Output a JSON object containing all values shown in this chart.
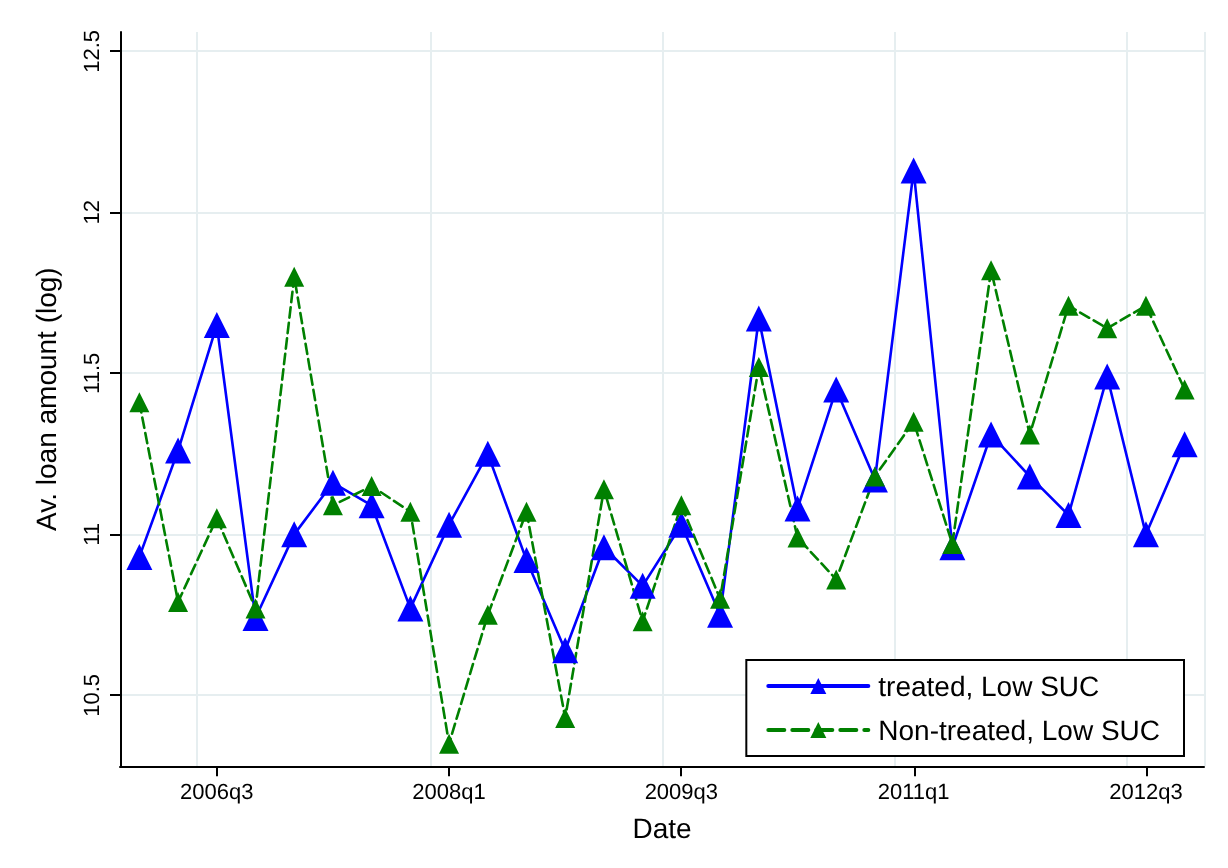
{
  "chart_data": {
    "type": "line",
    "xlabel": "Date",
    "ylabel": "Av. loan amount (log)",
    "categories": [
      null,
      null,
      "2006q3",
      null,
      null,
      null,
      null,
      null,
      "2008q1",
      null,
      null,
      null,
      null,
      null,
      "2009q3",
      null,
      null,
      null,
      null,
      null,
      "2011q1",
      null,
      null,
      null,
      null,
      null,
      "2012q3",
      null
    ],
    "series": [
      {
        "name": "treated, Low SUC",
        "color": "#0000ff",
        "line_style": "solid",
        "values": [
          10.93,
          11.26,
          11.65,
          10.74,
          11.0,
          11.16,
          11.09,
          10.77,
          11.03,
          11.25,
          10.92,
          10.64,
          10.96,
          10.84,
          11.03,
          10.75,
          11.67,
          11.08,
          11.45,
          11.17,
          12.13,
          10.96,
          11.31,
          11.18,
          11.06,
          11.49,
          11.0,
          11.28
        ]
      },
      {
        "name": "Non-treated, Low SUC",
        "color": "#008000",
        "line_style": "dashed",
        "values": [
          11.41,
          10.79,
          11.05,
          10.77,
          11.8,
          11.09,
          11.15,
          11.07,
          10.35,
          10.75,
          11.07,
          10.43,
          11.14,
          10.73,
          11.09,
          10.8,
          11.52,
          10.99,
          10.86,
          11.18,
          11.35,
          10.97,
          11.82,
          11.31,
          11.71,
          11.64,
          11.71,
          11.45
        ]
      }
    ],
    "ylim": [
      10.28,
      12.56
    ],
    "yticks": [
      10.5,
      11,
      11.5,
      12,
      12.5
    ],
    "grid": true,
    "legend": "bottom right",
    "marker": "triangle"
  }
}
